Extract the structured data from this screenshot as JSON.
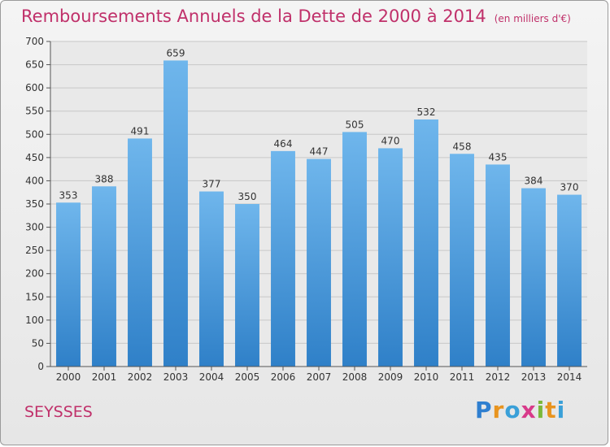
{
  "header": {
    "title": "Remboursements Annuels de la Dette de 2000 à 2014",
    "unit": "(en milliers d'€)"
  },
  "footer": {
    "commune": "SEYSSES",
    "brand_letters": [
      "P",
      "r",
      "o",
      "x",
      "i",
      "t",
      "i"
    ]
  },
  "colors": {
    "bar_top": "#6fb6ec",
    "bar_bottom": "#2f80c8",
    "title": "#c0306a"
  },
  "chart_data": {
    "type": "bar",
    "categories": [
      "2000",
      "2001",
      "2002",
      "2003",
      "2004",
      "2005",
      "2006",
      "2007",
      "2008",
      "2009",
      "2010",
      "2011",
      "2012",
      "2013",
      "2014"
    ],
    "values": [
      353,
      388,
      491,
      659,
      377,
      350,
      464,
      447,
      505,
      470,
      532,
      458,
      435,
      384,
      370
    ],
    "ylim": [
      0,
      700
    ],
    "yticks": [
      0,
      50,
      100,
      150,
      200,
      250,
      300,
      350,
      400,
      450,
      500,
      550,
      600,
      650,
      700
    ],
    "grid": true
  }
}
